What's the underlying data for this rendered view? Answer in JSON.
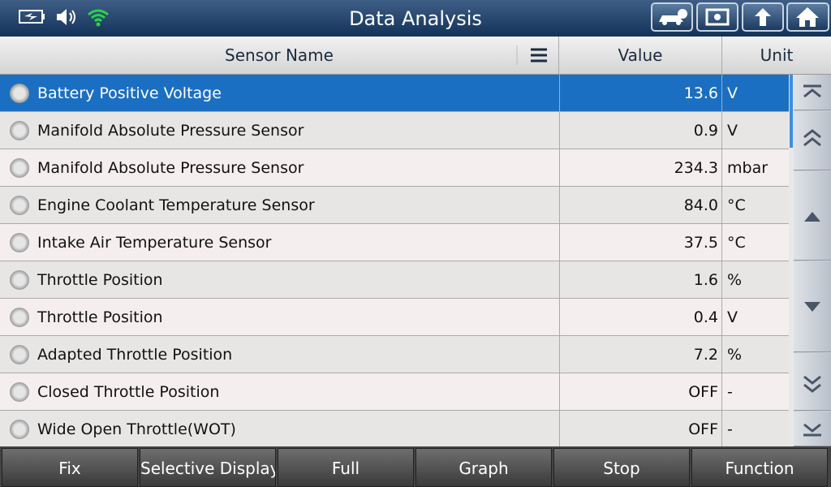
{
  "header": {
    "title": "Data Analysis"
  },
  "table": {
    "columns": [
      "Sensor Name",
      "Value",
      "Unit"
    ],
    "rows": [
      [
        "Battery Positive Voltage",
        "13.6",
        "V"
      ],
      [
        "Manifold Absolute Pressure Sensor",
        "0.9",
        "V"
      ],
      [
        "Manifold Absolute Pressure Sensor",
        "234.3",
        "mbar"
      ],
      [
        "Engine Coolant Temperature Sensor",
        "84.0",
        "°C"
      ],
      [
        "Intake Air Temperature Sensor",
        "37.5",
        "°C"
      ],
      [
        "Throttle Position",
        "1.6",
        "%"
      ],
      [
        "Throttle Position",
        "0.4",
        "V"
      ],
      [
        "Adapted Throttle Position",
        "7.2",
        "%"
      ],
      [
        "Closed Throttle Position",
        "OFF",
        "-"
      ],
      [
        "Wide Open Throttle(WOT)",
        "OFF",
        "-"
      ]
    ]
  },
  "footer": {
    "buttons": [
      "Fix",
      "Selective Display",
      "Full",
      "Graph",
      "Stop",
      "Function"
    ]
  }
}
